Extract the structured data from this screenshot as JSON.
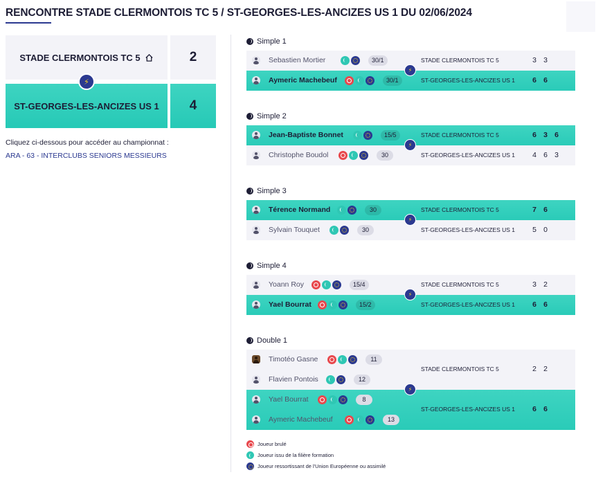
{
  "page": {
    "title": "RENCONTRE STADE CLERMONTOIS TC 5 / ST-GEORGES-LES-ANCIZES US 1 DU 02/06/2024"
  },
  "teams": {
    "home": {
      "name": "STADE CLERMONTOIS TC 5",
      "score": "2"
    },
    "away": {
      "name": "ST-GEORGES-LES-ANCIZES US 1",
      "score": "4"
    }
  },
  "championship": {
    "intro": "Cliquez ci-dessous pour accéder au championnat :",
    "link": "ARA - 63 - INTERCLUBS SENIORS MESSIEURS"
  },
  "matches": [
    {
      "label": "Simple 1",
      "home_team": "STADE CLERMONTOIS TC 5",
      "away_team": "ST-GEORGES-LES-ANCIZES US 1",
      "home_sets": [
        "3",
        "3"
      ],
      "away_sets": [
        "6",
        "6"
      ],
      "winner": "away",
      "home_players": [
        {
          "name": "Sebastien Mortier",
          "rank": "30/1",
          "badges": [
            "teal",
            "blue"
          ]
        }
      ],
      "away_players": [
        {
          "name": "Aymeric Machebeuf",
          "rank": "30/1",
          "badges": [
            "red",
            "teal",
            "blue"
          ]
        }
      ]
    },
    {
      "label": "Simple 2",
      "home_team": "STADE CLERMONTOIS TC 5",
      "away_team": "ST-GEORGES-LES-ANCIZES US 1",
      "home_sets": [
        "6",
        "3",
        "6"
      ],
      "away_sets": [
        "4",
        "6",
        "3"
      ],
      "winner": "home",
      "home_players": [
        {
          "name": "Jean-Baptiste Bonnet",
          "rank": "15/5",
          "badges": [
            "teal",
            "blue"
          ]
        }
      ],
      "away_players": [
        {
          "name": "Christophe Boudol",
          "rank": "30",
          "badges": [
            "red",
            "teal",
            "blue"
          ]
        }
      ]
    },
    {
      "label": "Simple 3",
      "home_team": "STADE CLERMONTOIS TC 5",
      "away_team": "ST-GEORGES-LES-ANCIZES US 1",
      "home_sets": [
        "7",
        "6"
      ],
      "away_sets": [
        "5",
        "0"
      ],
      "winner": "home",
      "home_players": [
        {
          "name": "Térence Normand",
          "rank": "30",
          "badges": [
            "teal",
            "blue"
          ]
        }
      ],
      "away_players": [
        {
          "name": "Sylvain Touquet",
          "rank": "30",
          "badges": [
            "teal",
            "blue"
          ]
        }
      ]
    },
    {
      "label": "Simple 4",
      "home_team": "STADE CLERMONTOIS TC 5",
      "away_team": "ST-GEORGES-LES-ANCIZES US 1",
      "home_sets": [
        "3",
        "2"
      ],
      "away_sets": [
        "6",
        "6"
      ],
      "winner": "away",
      "home_players": [
        {
          "name": "Yoann Roy",
          "rank": "15/4",
          "badges": [
            "red",
            "teal",
            "blue"
          ]
        }
      ],
      "away_players": [
        {
          "name": "Yael Bourrat",
          "rank": "15/2",
          "badges": [
            "red",
            "teal",
            "blue"
          ]
        }
      ]
    },
    {
      "label": "Double 1",
      "home_team": "STADE CLERMONTOIS TC 5",
      "away_team": "ST-GEORGES-LES-ANCIZES US 1",
      "home_sets": [
        "2",
        "2"
      ],
      "away_sets": [
        "6",
        "6"
      ],
      "winner": "away",
      "home_players": [
        {
          "name": "Timotéo Gasne",
          "rank": "11",
          "badges": [
            "red",
            "teal",
            "blue"
          ],
          "photo": true
        },
        {
          "name": "Flavien Pontois",
          "rank": "12",
          "badges": [
            "teal",
            "blue"
          ]
        }
      ],
      "away_players": [
        {
          "name": "Yael Bourrat",
          "rank": "8",
          "badges": [
            "red",
            "teal",
            "blue"
          ]
        },
        {
          "name": "Aymeric Machebeuf",
          "rank": "13",
          "badges": [
            "red",
            "teal",
            "blue"
          ]
        }
      ]
    }
  ],
  "legend": [
    {
      "color": "red",
      "label": "Joueur brulé"
    },
    {
      "color": "teal",
      "label": "Joueur issu de la filière formation"
    },
    {
      "color": "blue",
      "label": "Joueur ressortissant de l'Union Européenne ou assimilé"
    }
  ],
  "colors": {
    "accent": "#2b3990",
    "winner": "#2fc7b4",
    "burned": "#e8484d",
    "card": "#f3f3f8"
  },
  "icons": {
    "home": "home-icon",
    "versus": "lightning-icon",
    "match": "tennis-ball-icon",
    "player": "user-icon"
  }
}
